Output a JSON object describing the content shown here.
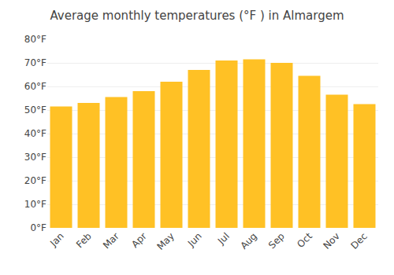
{
  "chart_data": {
    "type": "bar",
    "title": "Average monthly temperatures (°F ) in Almargem",
    "categories": [
      "Jan",
      "Feb",
      "Mar",
      "Apr",
      "May",
      "Jun",
      "Jul",
      "Aug",
      "Sep",
      "Oct",
      "Nov",
      "Dec"
    ],
    "values": [
      51.5,
      53.0,
      55.5,
      58.0,
      62.0,
      67.0,
      71.0,
      71.5,
      70.0,
      64.5,
      56.5,
      52.5
    ],
    "color": "#FFC125",
    "ylim": [
      0,
      80
    ],
    "yticks": [
      {
        "value": 0,
        "label": "0°F"
      },
      {
        "value": 10,
        "label": "10°F"
      },
      {
        "value": 20,
        "label": "20°F"
      },
      {
        "value": 30,
        "label": "30°F"
      },
      {
        "value": 40,
        "label": "40°F"
      },
      {
        "value": 50,
        "label": "50°F"
      },
      {
        "value": 60,
        "label": "60°F"
      },
      {
        "value": 70,
        "label": "70°F"
      },
      {
        "value": 80,
        "label": "80°F"
      }
    ],
    "grid": true
  }
}
